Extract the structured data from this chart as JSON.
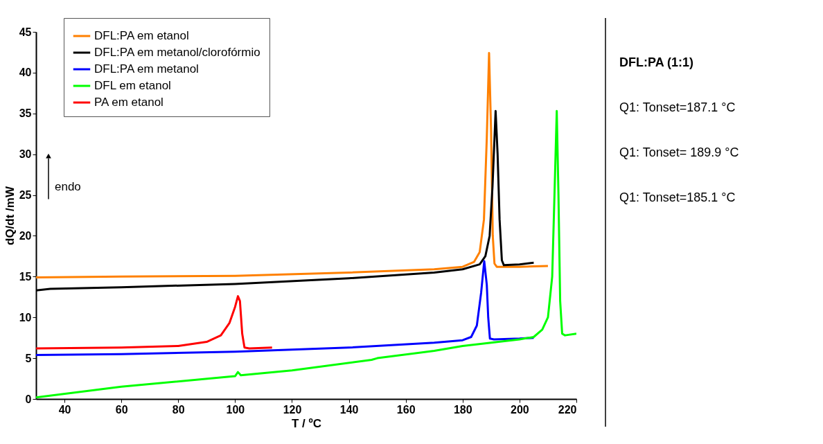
{
  "chart_data": {
    "type": "line",
    "xlabel": "T / ºC",
    "ylabel": "dQ/dt  /mW",
    "xlim": [
      30,
      220
    ],
    "xticks": [
      40,
      60,
      80,
      100,
      120,
      140,
      160,
      180,
      200,
      220
    ],
    "ylim": [
      0,
      45
    ],
    "yticks": [
      0,
      5,
      10,
      15,
      20,
      25,
      30,
      35,
      40,
      45
    ],
    "grid": false,
    "legend": "top left",
    "marker": "none",
    "line_style": "solid",
    "annotations": [
      "endo",
      "DFL:PA (1:1)",
      "Q1: Tonset=187.1 °C",
      "Q1: Tonset= 189.9 °C",
      "Q1: Tonset=185.1 °C"
    ],
    "series": [
      {
        "name": "DFL:PA em etanol",
        "color": "#ff8000",
        "x": [
          30,
          60,
          100,
          140,
          170,
          180,
          184,
          186,
          187.5,
          188.5,
          189.3,
          190,
          190.6,
          191.2,
          192,
          200,
          210
        ],
        "values": [
          14.9,
          15.0,
          15.1,
          15.5,
          15.9,
          16.2,
          16.8,
          18.0,
          22,
          32,
          42.4,
          33,
          20,
          16.6,
          16.2,
          16.2,
          16.3
        ]
      },
      {
        "name": "DFL:PA em metanol/clorofórmio",
        "color": "#000000",
        "x": [
          30,
          35,
          60,
          100,
          140,
          170,
          180,
          186,
          188,
          189.5,
          190.5,
          191.6,
          192.3,
          193,
          193.8,
          194.5,
          200,
          205
        ],
        "values": [
          13.3,
          13.5,
          13.7,
          14.1,
          14.8,
          15.5,
          15.9,
          16.5,
          17.5,
          20,
          26,
          35.3,
          30,
          22,
          17,
          16.4,
          16.5,
          16.7
        ]
      },
      {
        "name": "DFL:PA em metanol",
        "color": "#0000ff",
        "x": [
          30,
          60,
          100,
          140,
          170,
          180,
          183,
          185,
          186.5,
          187.6,
          188.5,
          189,
          189.6,
          191,
          200,
          205
        ],
        "values": [
          5.4,
          5.5,
          5.8,
          6.3,
          6.9,
          7.2,
          7.6,
          9,
          13,
          16.9,
          14,
          10,
          7.4,
          7.3,
          7.4,
          7.5
        ]
      },
      {
        "name": "DFL em etanol",
        "color": "#00ff00",
        "x": [
          30,
          60,
          100,
          101,
          102,
          120,
          148,
          150,
          170,
          180,
          200,
          205,
          208,
          210,
          211.5,
          212.3,
          213.1,
          213.7,
          214.3,
          215,
          216,
          220
        ],
        "values": [
          0.2,
          1.5,
          2.8,
          3.3,
          2.9,
          3.5,
          4.8,
          5.0,
          5.9,
          6.5,
          7.3,
          7.6,
          8.5,
          10,
          15,
          25,
          35.3,
          25,
          12,
          8,
          7.8,
          8.0
        ]
      },
      {
        "name": "PA em etanol",
        "color": "#ff0000",
        "x": [
          30,
          60,
          80,
          90,
          95,
          98,
          100,
          101,
          101.7,
          102.5,
          103.3,
          105,
          113
        ],
        "values": [
          6.2,
          6.3,
          6.5,
          7.0,
          7.8,
          9.3,
          11.3,
          12.6,
          12.0,
          8,
          6.3,
          6.2,
          6.3
        ]
      }
    ]
  }
}
